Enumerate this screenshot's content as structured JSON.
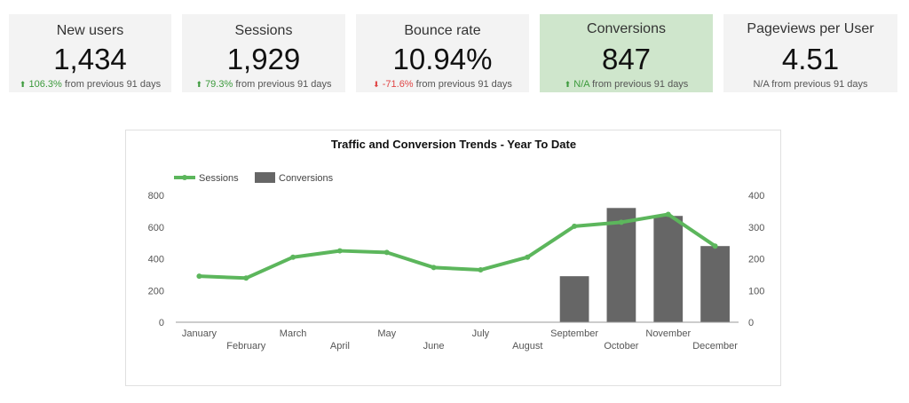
{
  "kpis": [
    {
      "label": "New users",
      "value": "1,434",
      "delta": "106.3%",
      "direction": "up",
      "suffix": "from previous 91 days",
      "highlight": false
    },
    {
      "label": "Sessions",
      "value": "1,929",
      "delta": "79.3%",
      "direction": "up",
      "suffix": "from previous 91 days",
      "highlight": false
    },
    {
      "label": "Bounce rate",
      "value": "10.94%",
      "delta": "-71.6%",
      "direction": "down",
      "suffix": "from previous 91 days",
      "highlight": false
    },
    {
      "label": "Conversions",
      "value": "847",
      "delta": "N/A",
      "direction": "up",
      "suffix": "from previous 91 days",
      "highlight": true
    },
    {
      "label": "Pageviews per User",
      "value": "4.51",
      "delta": "N/A",
      "direction": "none",
      "suffix": "from previous 91 days",
      "highlight": false
    }
  ],
  "colors": {
    "sessions": "#5cb65c",
    "conversions": "#666666",
    "positive": "#3c9a3c",
    "negative": "#e04545"
  },
  "chart_data": {
    "type": "bar",
    "title": "Traffic and Conversion Trends - Year To Date",
    "categories": [
      "January",
      "February",
      "March",
      "April",
      "May",
      "June",
      "July",
      "August",
      "September",
      "October",
      "November",
      "December"
    ],
    "series": [
      {
        "name": "Sessions",
        "type": "line",
        "axis": "left",
        "values": [
          290,
          278,
          410,
          450,
          440,
          345,
          330,
          410,
          605,
          630,
          680,
          480
        ]
      },
      {
        "name": "Conversions",
        "type": "bar",
        "axis": "right",
        "values": [
          0,
          0,
          0,
          0,
          0,
          0,
          0,
          0,
          145,
          360,
          335,
          240
        ]
      }
    ],
    "ylim_left": [
      0,
      800
    ],
    "ylim_right": [
      0,
      400
    ],
    "yticks_left": [
      "0",
      "200",
      "400",
      "600",
      "800"
    ],
    "yticks_right": [
      "0",
      "100",
      "200",
      "300",
      "400"
    ],
    "legend_position": "top-left",
    "grid": false
  }
}
